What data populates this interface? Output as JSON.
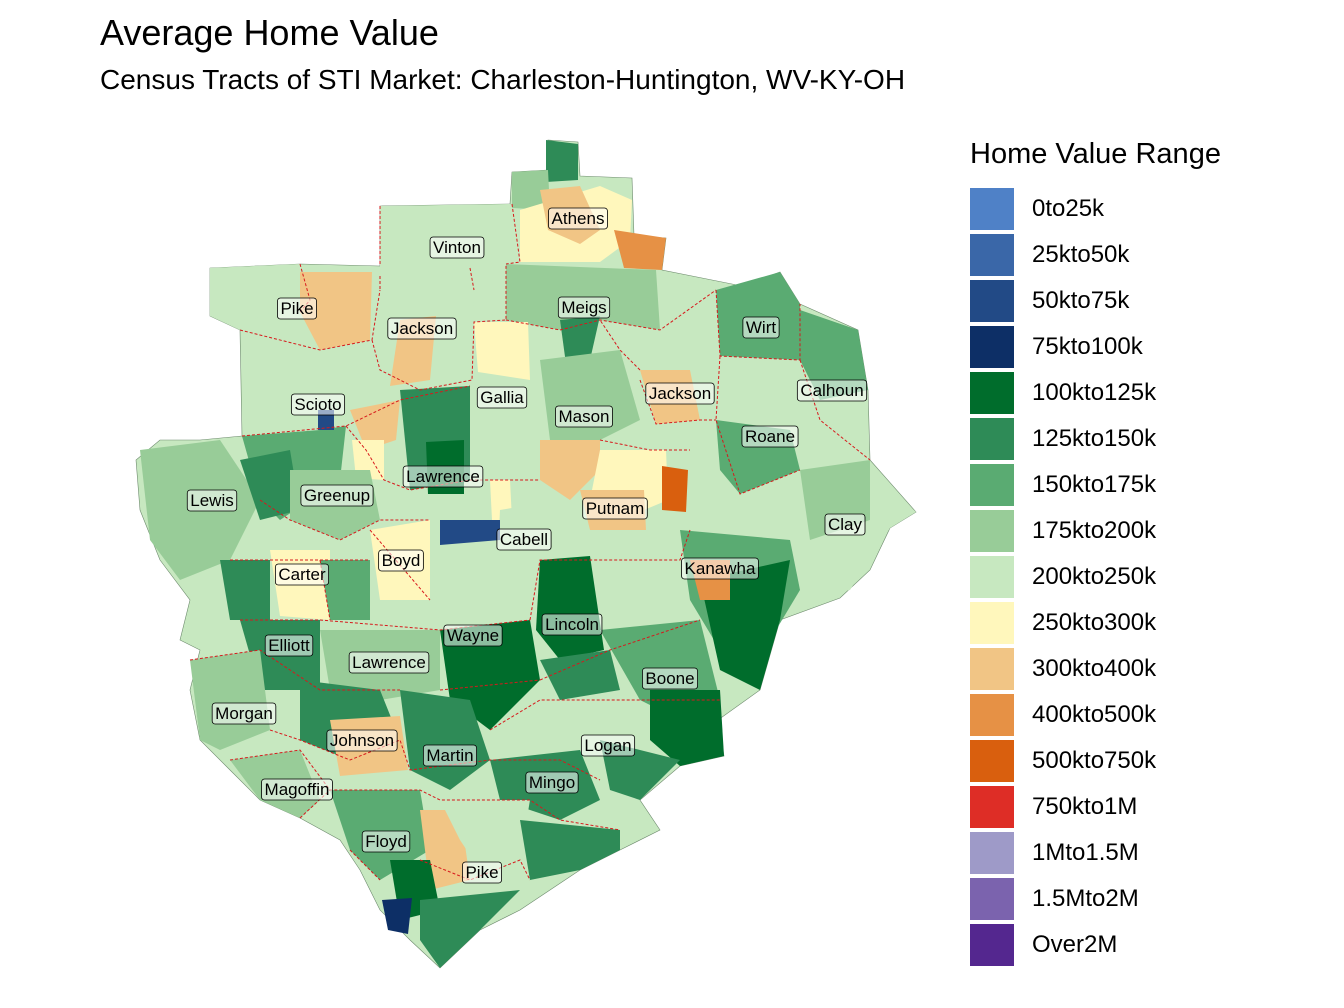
{
  "title": "Average Home Value",
  "subtitle": "Census Tracts of STI Market: Charleston-Huntington, WV-KY-OH",
  "legend": {
    "title": "Home Value Range",
    "items": [
      {
        "label": "0to25k",
        "color": "#4f81c7"
      },
      {
        "label": "25kto50k",
        "color": "#3a67a8"
      },
      {
        "label": "50kto75k",
        "color": "#224a86"
      },
      {
        "label": "75kto100k",
        "color": "#0d2f66"
      },
      {
        "label": "100kto125k",
        "color": "#006d2c"
      },
      {
        "label": "125kto150k",
        "color": "#2e8b57"
      },
      {
        "label": "150kto175k",
        "color": "#5aab72"
      },
      {
        "label": "175kto200k",
        "color": "#98cc98"
      },
      {
        "label": "200kto250k",
        "color": "#c7e8c0"
      },
      {
        "label": "250kto300k",
        "color": "#fff7bc"
      },
      {
        "label": "300kto400k",
        "color": "#f1c585"
      },
      {
        "label": "400kto500k",
        "color": "#e69145"
      },
      {
        "label": "500kto750k",
        "color": "#d95f0e"
      },
      {
        "label": "750kto1M",
        "color": "#de2d26"
      },
      {
        "label": "1Mto1.5M",
        "color": "#9e9ac8"
      },
      {
        "label": "1.5Mto2M",
        "color": "#7b63ae"
      },
      {
        "label": "Over2M",
        "color": "#54278f"
      }
    ]
  },
  "counties": [
    {
      "name": "Athens",
      "range": "300kto400k"
    },
    {
      "name": "Vinton",
      "range": "200kto250k"
    },
    {
      "name": "Pike",
      "range": "200kto250k"
    },
    {
      "name": "Jackson",
      "range": "200kto250k"
    },
    {
      "name": "Meigs",
      "range": "175kto200k"
    },
    {
      "name": "Wirt",
      "range": "175kto200k"
    },
    {
      "name": "Calhoun",
      "range": "175kto200k"
    },
    {
      "name": "Scioto",
      "range": "200kto250k"
    },
    {
      "name": "Gallia",
      "range": "200kto250k"
    },
    {
      "name": "Jackson",
      "range": "200kto250k"
    },
    {
      "name": "Mason",
      "range": "175kto200k"
    },
    {
      "name": "Roane",
      "range": "200kto250k"
    },
    {
      "name": "Lawrence",
      "range": "125kto150k"
    },
    {
      "name": "Lewis",
      "range": "175kto200k"
    },
    {
      "name": "Greenup",
      "range": "175kto200k"
    },
    {
      "name": "Putnam",
      "range": "250kto300k"
    },
    {
      "name": "Clay",
      "range": "200kto250k"
    },
    {
      "name": "Cabell",
      "range": "200kto250k"
    },
    {
      "name": "Boyd",
      "range": "200kto250k"
    },
    {
      "name": "Carter",
      "range": "200kto250k"
    },
    {
      "name": "Kanawha",
      "range": "175kto200k"
    },
    {
      "name": "Elliott",
      "range": "150kto175k"
    },
    {
      "name": "Wayne",
      "range": "125kto150k"
    },
    {
      "name": "Lincoln",
      "range": "100kto125k"
    },
    {
      "name": "Lawrence",
      "range": "150kto175k"
    },
    {
      "name": "Boone",
      "range": "125kto150k"
    },
    {
      "name": "Morgan",
      "range": "175kto200k"
    },
    {
      "name": "Johnson",
      "range": "200kto250k"
    },
    {
      "name": "Martin",
      "range": "125kto150k"
    },
    {
      "name": "Logan",
      "range": "150kto175k"
    },
    {
      "name": "Magoffin",
      "range": "175kto200k"
    },
    {
      "name": "Mingo",
      "range": "125kto150k"
    },
    {
      "name": "Floyd",
      "range": "150kto175k"
    },
    {
      "name": "Pike",
      "range": "175kto200k"
    }
  ]
}
